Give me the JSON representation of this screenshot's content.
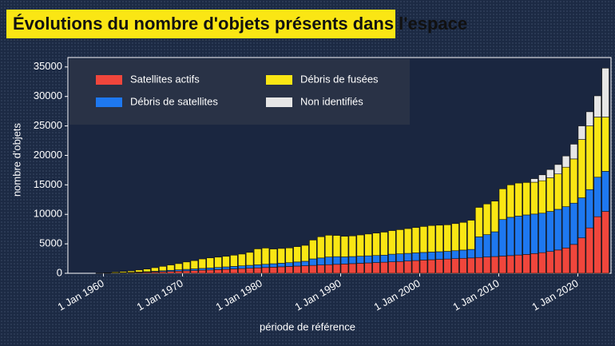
{
  "chart_data": {
    "type": "stacked_bar",
    "title": "Évolutions du nombre d'objets présents dans l'espace",
    "x_label": "période de référence",
    "y_label": "nombre d'objets",
    "x": [
      1958,
      1959,
      1960,
      1961,
      1962,
      1963,
      1964,
      1965,
      1966,
      1967,
      1968,
      1969,
      1970,
      1971,
      1972,
      1973,
      1974,
      1975,
      1976,
      1977,
      1978,
      1979,
      1980,
      1981,
      1982,
      1983,
      1984,
      1985,
      1986,
      1987,
      1988,
      1989,
      1990,
      1991,
      1992,
      1993,
      1994,
      1995,
      1996,
      1997,
      1998,
      1999,
      2000,
      2001,
      2002,
      2003,
      2004,
      2005,
      2006,
      2007,
      2008,
      2009,
      2010,
      2011,
      2012,
      2013,
      2014,
      2015,
      2016,
      2017,
      2018,
      2019,
      2020,
      2021,
      2022,
      2023
    ],
    "series": [
      {
        "name": "Satellites actifs",
        "color": "#f0463c",
        "values": [
          0,
          10,
          20,
          40,
          60,
          90,
          130,
          170,
          220,
          270,
          320,
          370,
          420,
          470,
          520,
          570,
          620,
          680,
          740,
          800,
          860,
          920,
          980,
          1040,
          1100,
          1160,
          1220,
          1280,
          1340,
          1400,
          1460,
          1520,
          1580,
          1640,
          1700,
          1760,
          1820,
          1880,
          1940,
          2000,
          2080,
          2160,
          2240,
          2300,
          2360,
          2420,
          2480,
          2540,
          2600,
          2680,
          2760,
          2840,
          2920,
          3000,
          3100,
          3200,
          3350,
          3500,
          3700,
          3950,
          4300,
          4900,
          6000,
          7700,
          9600,
          10500
        ]
      },
      {
        "name": "Débris de satellites",
        "color": "#1e78f0",
        "values": [
          0,
          0,
          10,
          20,
          40,
          60,
          80,
          100,
          130,
          160,
          190,
          220,
          250,
          280,
          310,
          340,
          370,
          400,
          430,
          460,
          490,
          520,
          550,
          580,
          610,
          640,
          700,
          760,
          1100,
          1200,
          1300,
          1300,
          1200,
          1200,
          1200,
          1200,
          1200,
          1200,
          1300,
          1300,
          1300,
          1300,
          1300,
          1300,
          1300,
          1300,
          1350,
          1400,
          1450,
          3500,
          3800,
          4200,
          6200,
          6500,
          6600,
          6700,
          6700,
          6700,
          6800,
          6900,
          7000,
          7000,
          6800,
          6500,
          6700,
          6800
        ]
      },
      {
        "name": "Débris de fusées",
        "color": "#fae614",
        "values": [
          0,
          10,
          70,
          150,
          200,
          250,
          350,
          450,
          600,
          750,
          900,
          1050,
          1250,
          1400,
          1600,
          1700,
          1750,
          1800,
          1900,
          2000,
          2200,
          2700,
          2750,
          2500,
          2500,
          2500,
          2600,
          2700,
          3200,
          3600,
          3700,
          3600,
          3500,
          3500,
          3600,
          3700,
          3800,
          3900,
          4000,
          4100,
          4200,
          4300,
          4400,
          4500,
          4500,
          4500,
          4600,
          4700,
          4950,
          5000,
          5200,
          5200,
          5200,
          5500,
          5600,
          5500,
          5400,
          5500,
          5700,
          6000,
          6700,
          7500,
          9900,
          10800,
          10200,
          9200
        ]
      },
      {
        "name": "Non identifiés",
        "color": "#e6e6e6",
        "values": [
          0,
          0,
          0,
          0,
          0,
          0,
          0,
          0,
          0,
          0,
          0,
          0,
          0,
          0,
          0,
          0,
          0,
          0,
          0,
          0,
          0,
          0,
          0,
          0,
          0,
          0,
          0,
          0,
          0,
          0,
          0,
          0,
          0,
          0,
          0,
          0,
          0,
          0,
          0,
          0,
          0,
          0,
          0,
          0,
          0,
          0,
          0,
          0,
          0,
          0,
          0,
          0,
          0,
          0,
          0,
          0,
          600,
          1000,
          1400,
          1600,
          1900,
          2500,
          2300,
          2400,
          3600,
          8300
        ]
      }
    ],
    "xlim": [
      1955.5,
      2024.2
    ],
    "xticks": [
      {
        "value": 1960,
        "label": "1 Jan 1960"
      },
      {
        "value": 1970,
        "label": "1 Jan 1970"
      },
      {
        "value": 1980,
        "label": "1 Jan 1980"
      },
      {
        "value": 1990,
        "label": "1 Jan 1990"
      },
      {
        "value": 2000,
        "label": "1 Jan 2000"
      },
      {
        "value": 2010,
        "label": "1 Jan 2010"
      },
      {
        "value": 2020,
        "label": "1 Jan 2020"
      }
    ],
    "ylim": [
      0,
      36600
    ],
    "yticks": [
      0,
      5000,
      10000,
      15000,
      20000,
      25000,
      30000,
      35000
    ],
    "legend": "upper-left"
  }
}
